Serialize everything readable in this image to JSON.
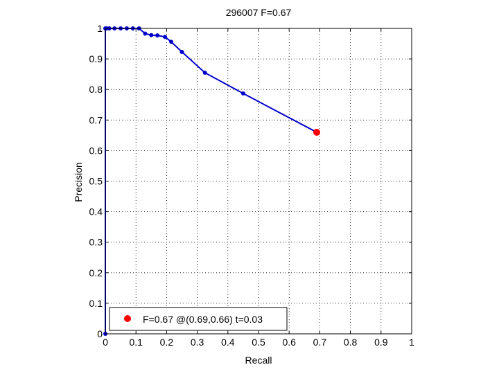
{
  "chart_data": {
    "type": "line",
    "title": "296007 F=0.67",
    "xlabel": "Recall",
    "ylabel": "Precision",
    "xlim": [
      0,
      1
    ],
    "ylim": [
      0,
      1
    ],
    "xticks": [
      0,
      0.1,
      0.2,
      0.3,
      0.4,
      0.5,
      0.6,
      0.7,
      0.8,
      0.9,
      1
    ],
    "yticks": [
      0,
      0.1,
      0.2,
      0.3,
      0.4,
      0.5,
      0.6,
      0.7,
      0.8,
      0.9,
      1
    ],
    "xtick_labels": [
      "0",
      "0.1",
      "0.2",
      "0.3",
      "0.4",
      "0.5",
      "0.6",
      "0.7",
      "0.8",
      "0.9",
      "1"
    ],
    "ytick_labels": [
      "0",
      "0.1",
      "0.2",
      "0.3",
      "0.4",
      "0.5",
      "0.6",
      "0.7",
      "0.8",
      "0.9",
      "1"
    ],
    "grid": true,
    "series": [
      {
        "color": "#0000cc",
        "x": [
          0,
          0,
          0.005,
          0.013,
          0.03,
          0.05,
          0.07,
          0.09,
          0.11,
          0.13,
          0.15,
          0.17,
          0.195,
          0.215,
          0.25,
          0.325,
          0.45,
          0.69
        ],
        "y": [
          0,
          1,
          1,
          1,
          1,
          1,
          1,
          1,
          1,
          0.983,
          0.978,
          0.977,
          0.972,
          0.956,
          0.923,
          0.855,
          0.787,
          0.66
        ]
      }
    ],
    "best_point": {
      "x": 0.69,
      "y": 0.66,
      "color": "#ff0000"
    },
    "legend": {
      "position": "bottom-left",
      "entries": [
        {
          "label": "F=0.67 @(0.69,0.66) t=0.03",
          "color": "#ff0000",
          "marker": "filled-circle"
        }
      ]
    }
  }
}
